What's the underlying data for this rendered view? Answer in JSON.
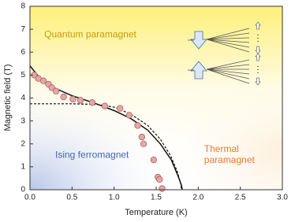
{
  "chart_data": {
    "type": "scatter",
    "x_label": "Temperature (K)",
    "y_label": "Magnetic  field (T)",
    "xlim": [
      0,
      3
    ],
    "ylim": [
      0,
      8
    ],
    "xticks": [
      {
        "value": 0,
        "label": "0.0"
      },
      0.5,
      {
        "value": 1,
        "label": "1.0"
      },
      1.5,
      {
        "value": 2,
        "label": "2.0"
      },
      2.5,
      {
        "value": 3,
        "label": "3.0"
      }
    ],
    "yticks": [
      0,
      1,
      2,
      3,
      4,
      5,
      6,
      7,
      8
    ],
    "points": {
      "color": "#e8a5a5",
      "x": [
        0.05,
        0.1,
        0.16,
        0.22,
        0.26,
        0.31,
        0.4,
        0.51,
        0.6,
        0.74,
        0.89,
        1.07,
        1.18,
        1.28,
        1.33,
        1.35,
        1.47,
        1.52,
        1.54,
        1.57
      ],
      "y": [
        5.0,
        4.85,
        4.75,
        4.6,
        4.45,
        4.3,
        4.05,
        3.95,
        3.9,
        3.8,
        3.65,
        3.55,
        3.25,
        2.8,
        2.3,
        2.0,
        1.3,
        0.55,
        0.45,
        0.05
      ]
    },
    "curves": [
      {
        "color": "#111",
        "dashed": false,
        "x": [
          0,
          0.1,
          0.25,
          0.5,
          0.75,
          1.0,
          1.2,
          1.4,
          1.55,
          1.68,
          1.76,
          1.8,
          1.81
        ],
        "y": [
          5.4,
          4.95,
          4.5,
          4.1,
          3.8,
          3.45,
          3.1,
          2.6,
          2.0,
          1.3,
          0.6,
          0.2,
          0
        ]
      },
      {
        "color": "#111",
        "dashed": true,
        "x": [
          0,
          0.5,
          0.8,
          1.0,
          1.2,
          1.4,
          1.55,
          1.67,
          1.75,
          1.79,
          1.8
        ],
        "y": [
          3.75,
          3.75,
          3.72,
          3.6,
          3.3,
          2.8,
          2.2,
          1.5,
          0.8,
          0.3,
          0
        ]
      }
    ],
    "annotations": [
      {
        "lines": [
          "Quantum paramagnet"
        ],
        "color": "#c99a00",
        "x": 0.17,
        "y": 6.75
      },
      {
        "lines": [
          "Ising ferromagnet"
        ],
        "color": "#4466b0",
        "x": 0.3,
        "y": 1.5
      },
      {
        "lines": [
          "Thermal",
          "paramagnet"
        ],
        "color": "#e57a35",
        "x": 2.07,
        "y": 1.75
      }
    ]
  }
}
